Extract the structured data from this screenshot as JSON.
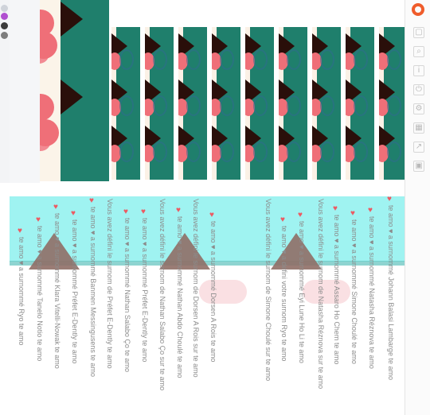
{
  "colors": {
    "teal": "#1f7f6c",
    "cyan": "#9ff3f1",
    "pink": "#ef6f78",
    "dark": "#2a0f0a"
  },
  "right_toolbar": [
    {
      "icon": "square-icon"
    },
    {
      "icon": "search-icon"
    },
    {
      "icon": "info-icon"
    },
    {
      "icon": "power-icon"
    },
    {
      "icon": "settings-icon"
    },
    {
      "icon": "grid-icon"
    },
    {
      "icon": "share-icon"
    },
    {
      "icon": "image-icon"
    }
  ],
  "columns": [
    {
      "text": "te amo ♥ a surnommé Ryo te amo",
      "heart_top": 286
    },
    {
      "text": "te amo ♥ a surnommé Tanelo Notio te amo",
      "heart_top": 272
    },
    {
      "text": "te amo ♥ a surnommé Klara Vitelli-Nowak te amo",
      "heart_top": 256
    },
    {
      "text": "te amo ♥ a surnommé Préfet E-Dently te amo",
      "heart_top": 264
    },
    {
      "text": "te amo ♥ a surnommé Banmen Messingusens te amo",
      "heart_top": 248
    },
    {
      "text": "Vous avez défini le surnom de Préfet E-Dently te amo",
      "heart_top": 0
    },
    {
      "text": "te amo ♥ a surnommé Nathan Salabo Ço te amo",
      "heart_top": 262
    },
    {
      "text": "te amo ♥ a surnommé Préfet E-Dently te amo",
      "heart_top": 262
    },
    {
      "text": "Vous avez défini le surnom de Nathan Salabo Ço sur te amo",
      "heart_top": 0
    },
    {
      "text": "te amo ♥ a surnommé Nathan Abdo Choulé te amo",
      "heart_top": 260
    },
    {
      "text": "Vous avez défini le surnom de Dorsen A Rois sur te amo",
      "heart_top": 0
    },
    {
      "text": "te amo ♥ a surnommé Dorsen A Rois te amo",
      "heart_top": 266
    },
    {
      "text": "Vous avez défini le surnom de Simone Choulé sur te amo",
      "heart_top": 0
    },
    {
      "text": "te amo ♥ a défini votre surnom Ryo te amo",
      "heart_top": 272
    },
    {
      "text": "te amo ♥ a surnommé Eyi Lune Ho Li te amo",
      "heart_top": 266
    },
    {
      "text": "Vous avez défini le surnom de Natasha Réznova sur te amo",
      "heart_top": 0
    },
    {
      "text": "te amo ♥ a surnommé Assaro Ho Chem te amo",
      "heart_top": 258
    },
    {
      "text": "te amo ♥ a surnommé Simone Choulé te amo",
      "heart_top": 264
    },
    {
      "text": "te amo ♥ a surnommé Natasha Réznova te amo",
      "heart_top": 260
    },
    {
      "text": "te amo ♥ a surnommé Johann Balasi Lambarge te amo",
      "heart_top": 246
    }
  ]
}
